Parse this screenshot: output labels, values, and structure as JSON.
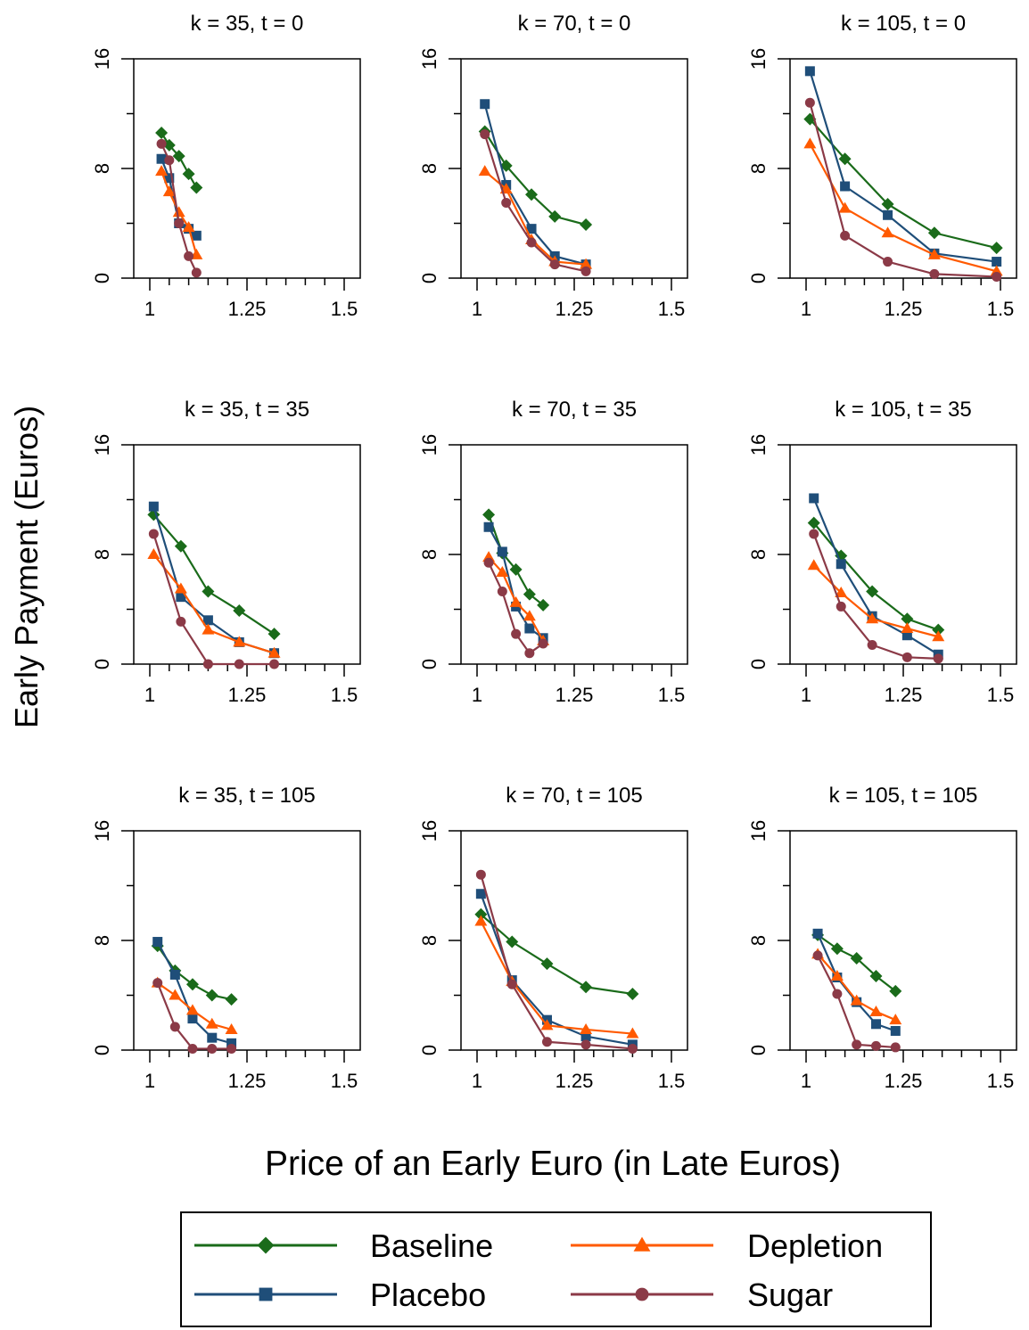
{
  "ylabel": "Early Payment (Euros)",
  "xlabel": "Price of an Early Euro (in Late Euros)",
  "legend": [
    {
      "name": "Baseline",
      "color": "#1a6b1a",
      "marker": "diamond"
    },
    {
      "name": "Depletion",
      "color": "#ff5a00",
      "marker": "triangle"
    },
    {
      "name": "Placebo",
      "color": "#1f4e79",
      "marker": "square"
    },
    {
      "name": "Sugar",
      "color": "#8b3a47",
      "marker": "circle"
    }
  ],
  "chart_data": [
    {
      "type": "line",
      "title": "k = 35, t = 0",
      "xlim": [
        1,
        1.5
      ],
      "ylim": [
        0,
        16
      ],
      "xticks": [
        "1",
        "1.25",
        "1.5"
      ],
      "yticks": [
        "0",
        "8",
        "16"
      ],
      "series": [
        {
          "name": "Baseline",
          "x": [
            1.03,
            1.05,
            1.075,
            1.1,
            1.12
          ],
          "y": [
            10.6,
            9.7,
            8.9,
            7.6,
            6.6
          ]
        },
        {
          "name": "Placebo",
          "x": [
            1.03,
            1.05,
            1.075,
            1.1,
            1.12
          ],
          "y": [
            8.7,
            7.3,
            4.0,
            3.6,
            3.1
          ]
        },
        {
          "name": "Depletion",
          "x": [
            1.03,
            1.05,
            1.075,
            1.1,
            1.12
          ],
          "y": [
            7.8,
            6.3,
            4.8,
            3.7,
            1.7
          ]
        },
        {
          "name": "Sugar",
          "x": [
            1.03,
            1.05,
            1.075,
            1.1,
            1.12
          ],
          "y": [
            9.8,
            8.6,
            4.0,
            1.6,
            0.4
          ]
        }
      ]
    },
    {
      "type": "line",
      "title": "k = 70, t = 0",
      "xlim": [
        1,
        1.5
      ],
      "ylim": [
        0,
        16
      ],
      "xticks": [
        "1",
        "1.25",
        "1.5"
      ],
      "yticks": [
        "0",
        "8",
        "16"
      ],
      "series": [
        {
          "name": "Baseline",
          "x": [
            1.02,
            1.075,
            1.14,
            1.2,
            1.28
          ],
          "y": [
            10.7,
            8.2,
            6.1,
            4.5,
            3.9
          ]
        },
        {
          "name": "Placebo",
          "x": [
            1.02,
            1.075,
            1.14,
            1.2,
            1.28
          ],
          "y": [
            12.7,
            6.8,
            3.6,
            1.6,
            1.0
          ]
        },
        {
          "name": "Depletion",
          "x": [
            1.02,
            1.075,
            1.14,
            1.2,
            1.28
          ],
          "y": [
            7.8,
            6.5,
            2.8,
            1.2,
            1.0
          ]
        },
        {
          "name": "Sugar",
          "x": [
            1.02,
            1.075,
            1.14,
            1.2,
            1.28
          ],
          "y": [
            10.5,
            5.5,
            2.6,
            1.0,
            0.5
          ]
        }
      ]
    },
    {
      "type": "line",
      "title": "k = 105, t = 0",
      "xlim": [
        1,
        1.5
      ],
      "ylim": [
        0,
        16
      ],
      "xticks": [
        "1",
        "1.25",
        "1.5"
      ],
      "yticks": [
        "0",
        "8",
        "16"
      ],
      "series": [
        {
          "name": "Baseline",
          "x": [
            1.01,
            1.1,
            1.21,
            1.33,
            1.49
          ],
          "y": [
            11.6,
            8.7,
            5.4,
            3.3,
            2.2
          ]
        },
        {
          "name": "Placebo",
          "x": [
            1.01,
            1.1,
            1.21,
            1.33,
            1.49
          ],
          "y": [
            15.1,
            6.7,
            4.6,
            1.8,
            1.2
          ]
        },
        {
          "name": "Depletion",
          "x": [
            1.01,
            1.1,
            1.21,
            1.33,
            1.49
          ],
          "y": [
            9.8,
            5.1,
            3.3,
            1.7,
            0.5
          ]
        },
        {
          "name": "Sugar",
          "x": [
            1.01,
            1.1,
            1.21,
            1.33,
            1.49
          ],
          "y": [
            12.8,
            3.1,
            1.2,
            0.3,
            0.1
          ]
        }
      ]
    },
    {
      "type": "line",
      "title": "k = 35, t = 35",
      "xlim": [
        1,
        1.5
      ],
      "ylim": [
        0,
        16
      ],
      "xticks": [
        "1",
        "1.25",
        "1.5"
      ],
      "yticks": [
        "0",
        "8",
        "16"
      ],
      "series": [
        {
          "name": "Baseline",
          "x": [
            1.01,
            1.08,
            1.15,
            1.23,
            1.32
          ],
          "y": [
            10.9,
            8.6,
            5.3,
            3.9,
            2.2
          ]
        },
        {
          "name": "Placebo",
          "x": [
            1.01,
            1.08,
            1.15,
            1.23,
            1.32
          ],
          "y": [
            11.5,
            4.9,
            3.2,
            1.6,
            0.8
          ]
        },
        {
          "name": "Depletion",
          "x": [
            1.01,
            1.08,
            1.15,
            1.23,
            1.32
          ],
          "y": [
            8.0,
            5.5,
            2.5,
            1.6,
            0.8
          ]
        },
        {
          "name": "Sugar",
          "x": [
            1.01,
            1.08,
            1.15,
            1.23,
            1.32
          ],
          "y": [
            9.5,
            3.1,
            0.0,
            0.0,
            0.0
          ]
        }
      ]
    },
    {
      "type": "line",
      "title": "k = 70, t = 35",
      "xlim": [
        1,
        1.5
      ],
      "ylim": [
        0,
        16
      ],
      "xticks": [
        "1",
        "1.25",
        "1.5"
      ],
      "yticks": [
        "0",
        "8",
        "16"
      ],
      "series": [
        {
          "name": "Baseline",
          "x": [
            1.03,
            1.065,
            1.1,
            1.135,
            1.17
          ],
          "y": [
            10.9,
            8.1,
            6.9,
            5.1,
            4.3
          ]
        },
        {
          "name": "Placebo",
          "x": [
            1.03,
            1.065,
            1.1,
            1.135,
            1.17
          ],
          "y": [
            10.0,
            8.2,
            4.2,
            2.6,
            1.9
          ]
        },
        {
          "name": "Depletion",
          "x": [
            1.03,
            1.065,
            1.1,
            1.135,
            1.17
          ],
          "y": [
            7.8,
            6.7,
            4.5,
            3.5,
            1.7
          ]
        },
        {
          "name": "Sugar",
          "x": [
            1.03,
            1.065,
            1.1,
            1.135,
            1.17
          ],
          "y": [
            7.4,
            5.3,
            2.2,
            0.8,
            1.5
          ]
        }
      ]
    },
    {
      "type": "line",
      "title": "k = 105, t = 35",
      "xlim": [
        1,
        1.5
      ],
      "ylim": [
        0,
        16
      ],
      "xticks": [
        "1",
        "1.25",
        "1.5"
      ],
      "yticks": [
        "0",
        "8",
        "16"
      ],
      "series": [
        {
          "name": "Baseline",
          "x": [
            1.02,
            1.09,
            1.17,
            1.26,
            1.34
          ],
          "y": [
            10.3,
            7.9,
            5.3,
            3.3,
            2.5
          ]
        },
        {
          "name": "Placebo",
          "x": [
            1.02,
            1.09,
            1.17,
            1.26,
            1.34
          ],
          "y": [
            12.1,
            7.3,
            3.5,
            2.1,
            0.7
          ]
        },
        {
          "name": "Depletion",
          "x": [
            1.02,
            1.09,
            1.17,
            1.26,
            1.34
          ],
          "y": [
            7.2,
            5.2,
            3.3,
            2.6,
            2.0
          ]
        },
        {
          "name": "Sugar",
          "x": [
            1.02,
            1.09,
            1.17,
            1.26,
            1.34
          ],
          "y": [
            9.5,
            4.2,
            1.4,
            0.5,
            0.4
          ]
        }
      ]
    },
    {
      "type": "line",
      "title": "k = 35, t = 105",
      "xlim": [
        1,
        1.5
      ],
      "ylim": [
        0,
        16
      ],
      "xticks": [
        "1",
        "1.25",
        "1.5"
      ],
      "yticks": [
        "0",
        "8",
        "16"
      ],
      "series": [
        {
          "name": "Baseline",
          "x": [
            1.02,
            1.065,
            1.11,
            1.16,
            1.21
          ],
          "y": [
            7.6,
            5.8,
            4.8,
            4.0,
            3.7
          ]
        },
        {
          "name": "Placebo",
          "x": [
            1.02,
            1.065,
            1.11,
            1.16,
            1.21
          ],
          "y": [
            7.9,
            5.5,
            2.3,
            0.9,
            0.5
          ]
        },
        {
          "name": "Depletion",
          "x": [
            1.02,
            1.065,
            1.11,
            1.16,
            1.21
          ],
          "y": [
            4.9,
            4.0,
            2.9,
            1.9,
            1.5
          ]
        },
        {
          "name": "Sugar",
          "x": [
            1.02,
            1.065,
            1.11,
            1.16,
            1.21
          ],
          "y": [
            4.9,
            1.7,
            0.1,
            0.1,
            0.1
          ]
        }
      ]
    },
    {
      "type": "line",
      "title": "k = 70, t = 105",
      "xlim": [
        1,
        1.5
      ],
      "ylim": [
        0,
        16
      ],
      "xticks": [
        "1",
        "1.25",
        "1.5"
      ],
      "yticks": [
        "0",
        "8",
        "16"
      ],
      "series": [
        {
          "name": "Baseline",
          "x": [
            1.01,
            1.09,
            1.18,
            1.28,
            1.4
          ],
          "y": [
            9.9,
            7.9,
            6.3,
            4.6,
            4.1
          ]
        },
        {
          "name": "Placebo",
          "x": [
            1.01,
            1.09,
            1.18,
            1.28,
            1.4
          ],
          "y": [
            11.4,
            5.1,
            2.2,
            1.0,
            0.4
          ]
        },
        {
          "name": "Depletion",
          "x": [
            1.01,
            1.09,
            1.18,
            1.28,
            1.4
          ],
          "y": [
            9.4,
            5.0,
            1.8,
            1.5,
            1.2
          ]
        },
        {
          "name": "Sugar",
          "x": [
            1.01,
            1.09,
            1.18,
            1.28,
            1.4
          ],
          "y": [
            12.8,
            4.8,
            0.6,
            0.4,
            0.1
          ]
        }
      ]
    },
    {
      "type": "line",
      "title": "k = 105, t = 105",
      "xlim": [
        1,
        1.5
      ],
      "ylim": [
        0,
        16
      ],
      "xticks": [
        "1",
        "1.25",
        "1.5"
      ],
      "yticks": [
        "0",
        "8",
        "16"
      ],
      "series": [
        {
          "name": "Baseline",
          "x": [
            1.03,
            1.08,
            1.13,
            1.18,
            1.23
          ],
          "y": [
            8.4,
            7.4,
            6.7,
            5.4,
            4.3
          ]
        },
        {
          "name": "Placebo",
          "x": [
            1.03,
            1.08,
            1.13,
            1.18,
            1.23
          ],
          "y": [
            8.5,
            5.3,
            3.5,
            1.9,
            1.4
          ]
        },
        {
          "name": "Depletion",
          "x": [
            1.03,
            1.08,
            1.13,
            1.18,
            1.23
          ],
          "y": [
            7.0,
            5.4,
            3.6,
            2.8,
            2.2
          ]
        },
        {
          "name": "Sugar",
          "x": [
            1.03,
            1.08,
            1.13,
            1.18,
            1.23
          ],
          "y": [
            6.9,
            4.1,
            0.4,
            0.3,
            0.2
          ]
        }
      ]
    }
  ]
}
